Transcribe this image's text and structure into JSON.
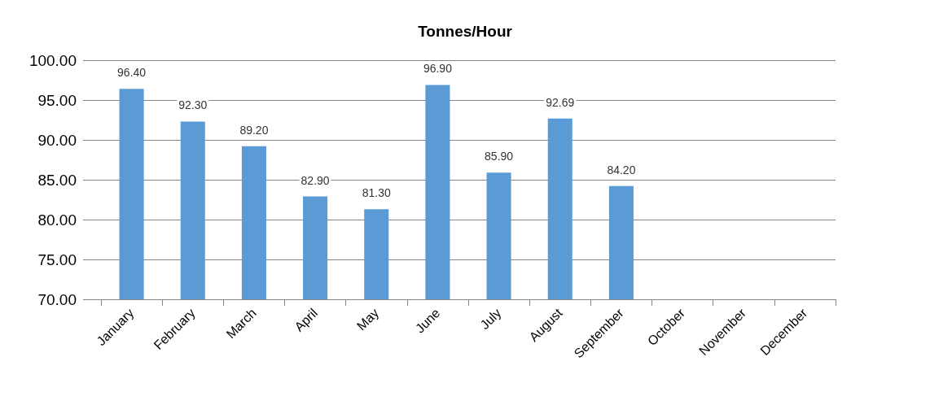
{
  "chart_data": {
    "type": "bar",
    "title": "Tonnes/Hour",
    "categories": [
      "January",
      "February",
      "March",
      "April",
      "May",
      "June",
      "July",
      "August",
      "September",
      "October",
      "November",
      "December"
    ],
    "values": [
      96.4,
      92.3,
      89.2,
      82.9,
      81.3,
      96.9,
      85.9,
      92.69,
      84.2,
      null,
      null,
      null
    ],
    "value_labels": [
      "96.40",
      "92.30",
      "89.20",
      "82.90",
      "81.30",
      "96.90",
      "85.90",
      "92.69",
      "84.20",
      null,
      null,
      null
    ],
    "color": "#5b9bd5",
    "ylim": [
      70,
      100
    ],
    "yticks": [
      {
        "value": 70,
        "label": "70.00"
      },
      {
        "value": 75,
        "label": "75.00"
      },
      {
        "value": 80,
        "label": "80.00"
      },
      {
        "value": 85,
        "label": "85.00"
      },
      {
        "value": 90,
        "label": "90.00"
      },
      {
        "value": 95,
        "label": "95.00"
      },
      {
        "value": 100,
        "label": "100.00"
      }
    ],
    "grid": "y"
  }
}
